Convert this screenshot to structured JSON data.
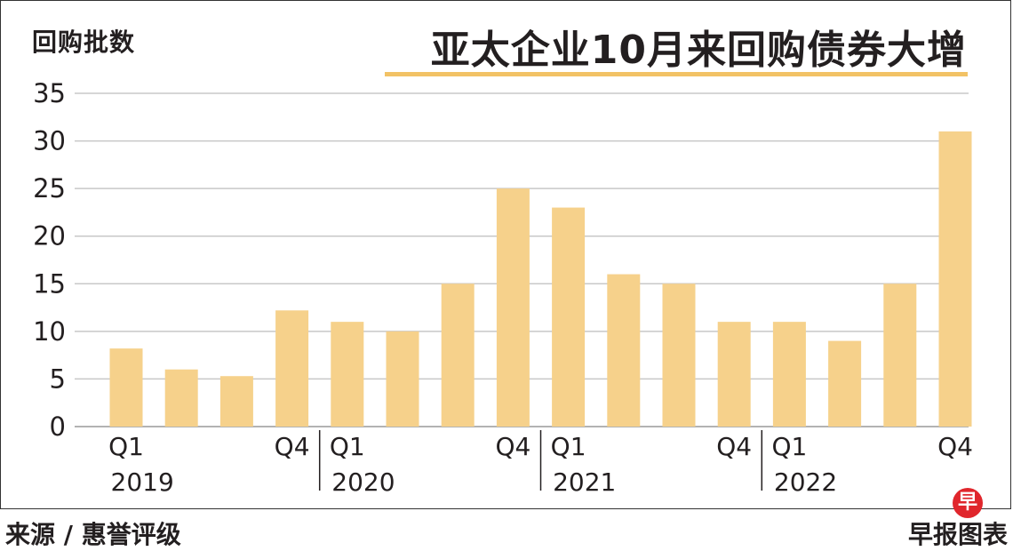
{
  "header": {
    "ylabel": "回购批数",
    "title": "亚太企业10月来回购债券大增"
  },
  "footer": {
    "source": "来源 / 惠誉评级",
    "brand": "早报图表",
    "logo_char": "早"
  },
  "colors": {
    "bar": "#f6d18b",
    "title_rule": "#f2c265",
    "grid": "#c8c8c8",
    "logo": "#e0262c"
  },
  "chart_data": {
    "type": "bar",
    "title": "亚太企业10月来回购债券大增",
    "ylabel": "回购批数",
    "xlabel": "",
    "ylim": [
      0,
      35
    ],
    "yticks": [
      0,
      5,
      10,
      15,
      20,
      25,
      30,
      35
    ],
    "grid": true,
    "categories": [
      "2019 Q1",
      "2019 Q2",
      "2019 Q3",
      "2019 Q4",
      "2020 Q1",
      "2020 Q2",
      "2020 Q3",
      "2020 Q4",
      "2021 Q1",
      "2021 Q2",
      "2021 Q3",
      "2021 Q4",
      "2022 Q1",
      "2022 Q2",
      "2022 Q3",
      "2022 Q4"
    ],
    "values": [
      8.2,
      6,
      5.3,
      12.2,
      11,
      10,
      15,
      25,
      23,
      16,
      15,
      11,
      11,
      9,
      15,
      31
    ],
    "x_tick_labels": [
      {
        "index": 0,
        "label": "Q1"
      },
      {
        "index": 3,
        "label": "Q4"
      },
      {
        "index": 4,
        "label": "Q1"
      },
      {
        "index": 7,
        "label": "Q4"
      },
      {
        "index": 8,
        "label": "Q1"
      },
      {
        "index": 11,
        "label": "Q4"
      },
      {
        "index": 12,
        "label": "Q1"
      },
      {
        "index": 15,
        "label": "Q4"
      }
    ],
    "year_labels": [
      {
        "start_index": 0,
        "label": "2019"
      },
      {
        "start_index": 4,
        "label": "2020"
      },
      {
        "start_index": 8,
        "label": "2021"
      },
      {
        "start_index": 12,
        "label": "2022"
      }
    ]
  }
}
